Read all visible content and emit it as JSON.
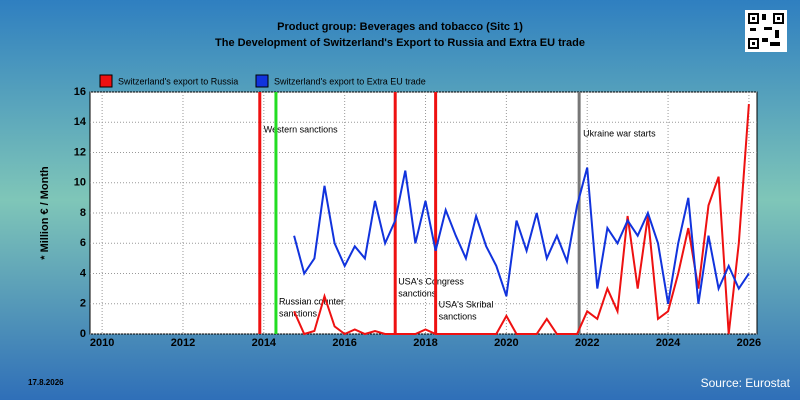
{
  "chart_data": {
    "type": "line",
    "title": "Product group: Beverages and tobacco (Sitc 1)",
    "subtitle": "The Development of Switzerland's Export to  Russia and Extra EU trade",
    "y_label": "* Million € / Month",
    "date": "17.8.2026",
    "source": "Source: Eurostat",
    "x": [
      2014.75,
      2015,
      2015.25,
      2015.5,
      2015.75,
      2016,
      2016.25,
      2016.5,
      2016.75,
      2017,
      2017.25,
      2017.5,
      2017.75,
      2018,
      2018.25,
      2018.5,
      2018.75,
      2019,
      2019.25,
      2019.5,
      2019.75,
      2020,
      2020.25,
      2020.5,
      2020.75,
      2021,
      2021.25,
      2021.5,
      2021.75,
      2022,
      2022.25,
      2022.5,
      2022.75,
      2023,
      2023.25,
      2023.5,
      2023.75,
      2024,
      2024.25,
      2024.5,
      2024.75,
      2025,
      2025.25,
      2025.5,
      2025.75,
      2026
    ],
    "series": [
      {
        "name": "Switzerland's export to Russia",
        "color": "#ee1111",
        "values": [
          1.5,
          0,
          0.2,
          2.5,
          0.5,
          0,
          0.3,
          0,
          0.2,
          0,
          0,
          0,
          0,
          0.3,
          0,
          0,
          0,
          0,
          0,
          0,
          0,
          1.2,
          0,
          0,
          0,
          1,
          0,
          0,
          0,
          1.5,
          1,
          3,
          1.5,
          7.8,
          3,
          7.8,
          1,
          1.5,
          4,
          7,
          3,
          8.5,
          10.4,
          0,
          6,
          15.2
        ]
      },
      {
        "name": "Switzerland's export to Extra EU trade",
        "color": "#1133dd",
        "values": [
          6.5,
          4,
          5,
          9.8,
          6,
          4.5,
          5.8,
          5,
          8.8,
          6,
          7.5,
          10.8,
          6,
          8.8,
          5.5,
          8.2,
          6.5,
          5,
          7.8,
          5.8,
          4.5,
          2.5,
          7.5,
          5.5,
          8,
          5,
          6.5,
          4.8,
          8.5,
          11,
          3,
          7,
          6,
          7.5,
          6.5,
          8,
          6,
          2,
          6,
          9,
          2,
          6.5,
          3,
          4.5,
          3,
          4
        ]
      }
    ],
    "events": [
      {
        "x": 2013.9,
        "label": [
          "Western sanctions"
        ],
        "color": "#ee1111"
      },
      {
        "x": 2014.3,
        "label": [
          "Russian counter",
          "sanctions"
        ],
        "color": "#22dd22"
      },
      {
        "x": 2017.25,
        "label": [
          "USA's Congress",
          "sanctions"
        ],
        "color": "#ee1111"
      },
      {
        "x": 2018.25,
        "label": [
          "USA's Skribal",
          "sanctions"
        ],
        "color": "#ee1111"
      },
      {
        "x": 2021.8,
        "label": [
          "Ukraine war starts"
        ],
        "color": "#777777"
      }
    ],
    "xlim": [
      2009.7,
      2026.2
    ],
    "xticks": [
      2010,
      2012,
      2014,
      2016,
      2018,
      2020,
      2022,
      2024,
      2026
    ],
    "ylim": [
      0,
      16
    ],
    "yticks": [
      0,
      2,
      4,
      6,
      8,
      10,
      12,
      14,
      16
    ],
    "grid": true
  }
}
